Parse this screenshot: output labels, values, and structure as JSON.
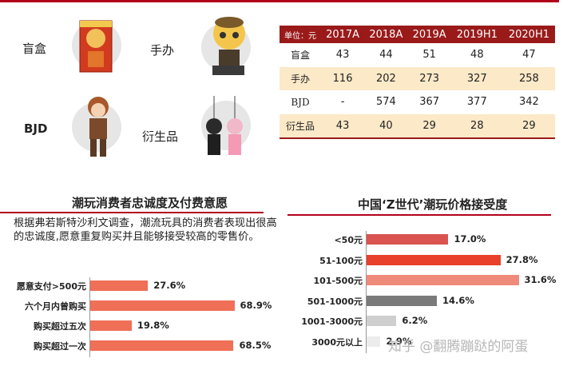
{
  "products": {
    "blind_box": "盲盒",
    "figure": "手办",
    "bjd": "BJD",
    "derivative": "衍生品"
  },
  "table": {
    "unit_header": "单位：元",
    "columns": [
      "2017A",
      "2018A",
      "2019A",
      "2019H1",
      "2020H1"
    ],
    "rows": [
      {
        "label": "盲盒",
        "values": [
          "43",
          "44",
          "51",
          "48",
          "47"
        ]
      },
      {
        "label": "手办",
        "values": [
          "116",
          "202",
          "273",
          "327",
          "258"
        ]
      },
      {
        "label": "BJD",
        "values": [
          "-",
          "574",
          "367",
          "377",
          "342"
        ]
      },
      {
        "label": "衍生品",
        "values": [
          "43",
          "40",
          "29",
          "28",
          "29"
        ]
      }
    ]
  },
  "loyalty": {
    "title": "潮玩消费者忠诚度及付费意愿",
    "text": "根据弗若斯特沙利文调查，潮流玩具的消费者表现出很高的忠诚度,愿意重复购买并且能够接受较高的零售价。"
  },
  "price": {
    "title": "中国‘Z世代’潮玩价格接受度"
  },
  "watermark": "知乎 @翻腾蹦跶的阿蛋",
  "colors": {
    "header": "#9a1a1a",
    "row_alt": "#fbe9c8",
    "accent": "#b3001b",
    "salmon": "#ef6f57"
  },
  "chart_data": [
    {
      "type": "bar",
      "orientation": "horizontal",
      "categories": [
        "愿意支付>500元",
        "六个月内曾购买",
        "购买超过五次",
        "购买超过一次"
      ],
      "values": [
        27.6,
        68.9,
        19.8,
        68.5
      ],
      "value_labels": [
        "27.6%",
        "68.9%",
        "19.8%",
        "68.5%"
      ],
      "xlim": [
        0,
        100
      ],
      "grid": false
    },
    {
      "type": "bar",
      "orientation": "horizontal",
      "categories": [
        "<50元",
        "51-100元",
        "101-500元",
        "501-1000元",
        "1001-3000元",
        "3000元以上"
      ],
      "values": [
        17.0,
        27.8,
        31.6,
        14.6,
        6.2,
        2.9
      ],
      "value_labels": [
        "17.0%",
        "27.8%",
        "31.6%",
        "14.6%",
        "6.2%",
        "2.9%"
      ],
      "colors": [
        "#d9534f",
        "#e8402a",
        "#f08a7a",
        "#7a7a7a",
        "#cfcfcf",
        "#ececec"
      ],
      "xlim": [
        0,
        35
      ],
      "grid": false
    }
  ]
}
